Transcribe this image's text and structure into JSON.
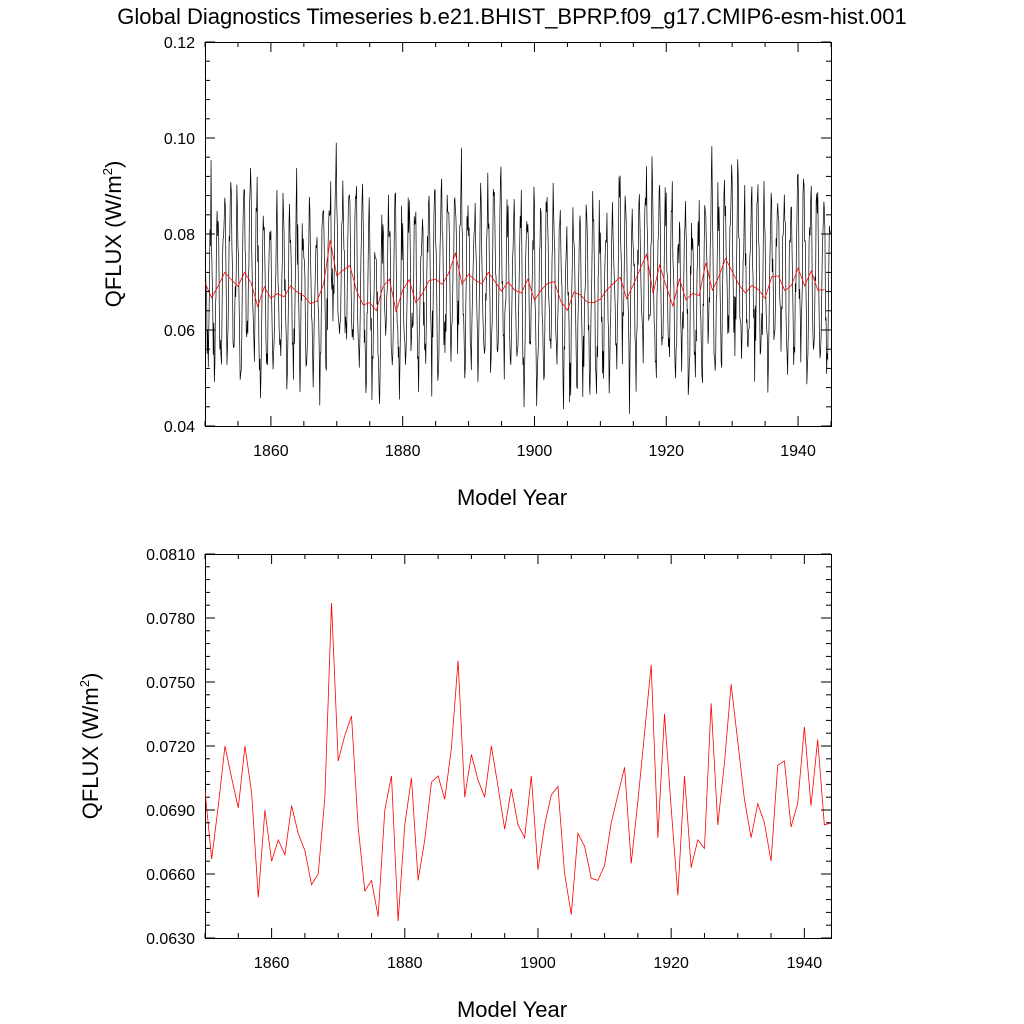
{
  "title": "Global Diagnostics Timeseries b.e21.BHIST_BPRP.f09_g17.CMIP6-esm-hist.001",
  "colors": {
    "monthly": "#000000",
    "annual": "#ff0000"
  },
  "chart_data": [
    {
      "type": "line",
      "xlabel": "Model Year",
      "ylabel": "QFLUX (W/m",
      "ylabel_sup": "2",
      "ylabel_close": ")",
      "xlim": [
        1850,
        1945
      ],
      "ylim": [
        0.04,
        0.12
      ],
      "xticks": [
        1860,
        1880,
        1900,
        1920,
        1940
      ],
      "xtick_labels": [
        "1860",
        "1880",
        "1900",
        "1920",
        "1940"
      ],
      "yticks": [
        0.04,
        0.06,
        0.08,
        0.1,
        0.12
      ],
      "ytick_labels": [
        "0.04",
        "0.06",
        "0.08",
        "0.10",
        "0.12"
      ],
      "grid": false,
      "series": [
        {
          "kind": "monthly",
          "color": "#000000",
          "seasonal_mean": 0.0685,
          "seasonal_amplitude": 0.0135,
          "monthly_shape": [
            0.9,
            0.45,
            -0.1,
            -0.55,
            -0.85,
            -0.95,
            -0.75,
            -0.4,
            0.15,
            0.7,
            1.0,
            1.05
          ],
          "note_only_shape": ""
        },
        {
          "kind": "annual",
          "color": "#ff0000"
        }
      ]
    },
    {
      "type": "line",
      "xlabel": "Model Year",
      "ylabel": "QFLUX (W/m",
      "ylabel_sup": "2",
      "ylabel_close": ")",
      "xlim": [
        1850,
        1944
      ],
      "ylim": [
        0.063,
        0.081
      ],
      "xticks": [
        1860,
        1880,
        1900,
        1920,
        1940
      ],
      "xtick_labels": [
        "1860",
        "1880",
        "1900",
        "1920",
        "1940"
      ],
      "yticks": [
        0.063,
        0.066,
        0.069,
        0.072,
        0.075,
        0.078,
        0.081
      ],
      "ytick_labels": [
        "0.0630",
        "0.0660",
        "0.0690",
        "0.0720",
        "0.0750",
        "0.0780",
        "0.0810"
      ],
      "grid": false,
      "series": [
        {
          "kind": "annual",
          "color": "#ff0000",
          "x": [
            1850,
            1851,
            1852,
            1853,
            1854,
            1855,
            1856,
            1857,
            1858,
            1859,
            1860,
            1861,
            1862,
            1863,
            1864,
            1865,
            1866,
            1867,
            1868,
            1869,
            1870,
            1871,
            1872,
            1873,
            1874,
            1875,
            1876,
            1877,
            1878,
            1879,
            1880,
            1881,
            1882,
            1883,
            1884,
            1885,
            1886,
            1887,
            1888,
            1889,
            1890,
            1891,
            1892,
            1893,
            1894,
            1895,
            1896,
            1897,
            1898,
            1899,
            1900,
            1901,
            1902,
            1903,
            1904,
            1905,
            1906,
            1907,
            1908,
            1909,
            1910,
            1911,
            1912,
            1913,
            1914,
            1915,
            1916,
            1917,
            1918,
            1919,
            1920,
            1921,
            1922,
            1923,
            1924,
            1925,
            1926,
            1927,
            1928,
            1929,
            1930,
            1931,
            1932,
            1933,
            1934,
            1935,
            1936,
            1937,
            1938,
            1939,
            1940,
            1941,
            1942,
            1943,
            1944
          ],
          "y": [
            0.0699,
            0.0667,
            0.0692,
            0.072,
            0.0705,
            0.0691,
            0.072,
            0.0698,
            0.0649,
            0.069,
            0.0666,
            0.0676,
            0.0669,
            0.0692,
            0.0679,
            0.0671,
            0.0655,
            0.066,
            0.0696,
            0.0787,
            0.0713,
            0.0725,
            0.0734,
            0.0682,
            0.0652,
            0.0657,
            0.064,
            0.069,
            0.0706,
            0.0638,
            0.0683,
            0.0705,
            0.0657,
            0.0676,
            0.0703,
            0.0706,
            0.0695,
            0.0719,
            0.076,
            0.0696,
            0.0716,
            0.0704,
            0.0696,
            0.072,
            0.0701,
            0.0681,
            0.07,
            0.0683,
            0.0677,
            0.0706,
            0.0662,
            0.0683,
            0.0697,
            0.0701,
            0.066,
            0.0641,
            0.0679,
            0.0673,
            0.0658,
            0.0657,
            0.0664,
            0.0684,
            0.0697,
            0.071,
            0.0665,
            0.0694,
            0.0726,
            0.0758,
            0.0677,
            0.0735,
            0.0691,
            0.065,
            0.0706,
            0.0663,
            0.0676,
            0.0672,
            0.074,
            0.0683,
            0.0712,
            0.0749,
            0.0722,
            0.0695,
            0.0677,
            0.0693,
            0.0684,
            0.0666,
            0.0711,
            0.0713,
            0.0682,
            0.0693,
            0.0729,
            0.0692,
            0.0723,
            0.0683,
            0.0684
          ]
        }
      ]
    }
  ]
}
